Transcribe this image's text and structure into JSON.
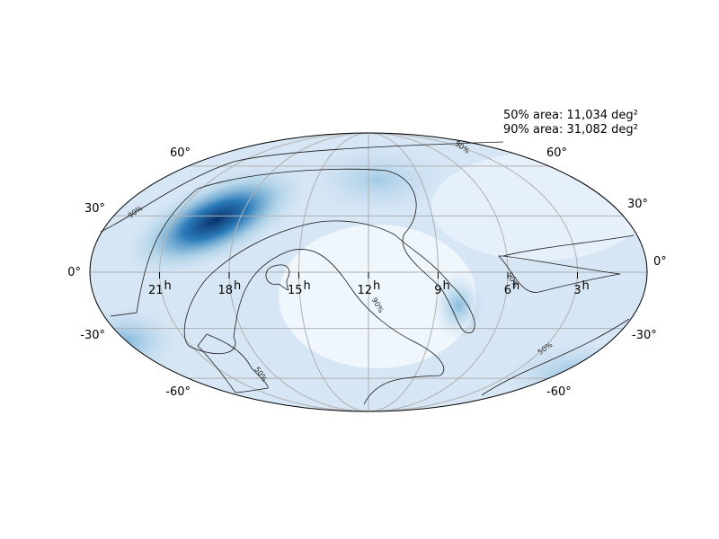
{
  "annotations": [
    "50% area: 11,034 deg²",
    "90% area: 31,082 deg²"
  ],
  "lat_labels": {
    "left": [
      "60°",
      "30°",
      "0°",
      "-30°",
      "-60°"
    ],
    "right": [
      "60°",
      "30°",
      "0°",
      "-30°",
      "-60°"
    ]
  },
  "ra_labels": [
    {
      "hour": "21",
      "unit": "h"
    },
    {
      "hour": "18",
      "unit": "h"
    },
    {
      "hour": "15",
      "unit": "h"
    },
    {
      "hour": "12",
      "unit": "h"
    },
    {
      "hour": "9",
      "unit": "h"
    },
    {
      "hour": "6",
      "unit": "h"
    },
    {
      "hour": "3",
      "unit": "h"
    }
  ],
  "contour_labels": [
    "90%",
    "90%",
    "90%",
    "90%",
    "50%",
    "50%"
  ]
}
